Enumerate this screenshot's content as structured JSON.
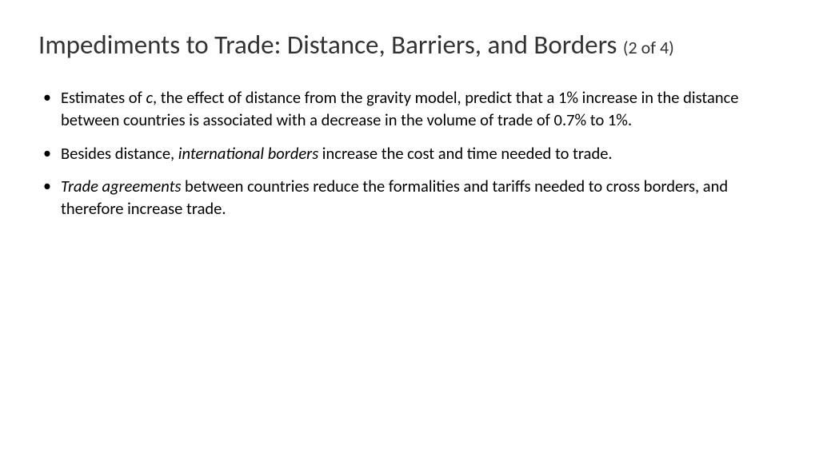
{
  "title": {
    "main": "Impediments to Trade: Distance, Barriers, and Borders ",
    "pager": "(2 of 4)"
  },
  "bullets": [
    {
      "segments": [
        {
          "text": "Estimates of ",
          "italic": false
        },
        {
          "text": "c",
          "italic": true
        },
        {
          "text": ", the effect of distance from the gravity model, predict that a 1% increase in the distance between countries is associated with a decrease in the volume of trade of 0.7% to 1%.",
          "italic": false
        }
      ]
    },
    {
      "segments": [
        {
          "text": "Besides distance, ",
          "italic": false
        },
        {
          "text": "international borders",
          "italic": true
        },
        {
          "text": " increase the cost and time needed to trade.",
          "italic": false
        }
      ]
    },
    {
      "segments": [
        {
          "text": "Trade agreements",
          "italic": true
        },
        {
          "text": " between countries reduce the formalities and tariffs needed to cross borders, and therefore increase trade.",
          "italic": false
        }
      ]
    }
  ],
  "colors": {
    "background": "#ffffff",
    "title": "#333333",
    "body": "#000000"
  },
  "typography": {
    "title_fontsize": 33,
    "pager_fontsize": 22,
    "body_fontsize": 20.5,
    "font_family": "Calibri"
  }
}
